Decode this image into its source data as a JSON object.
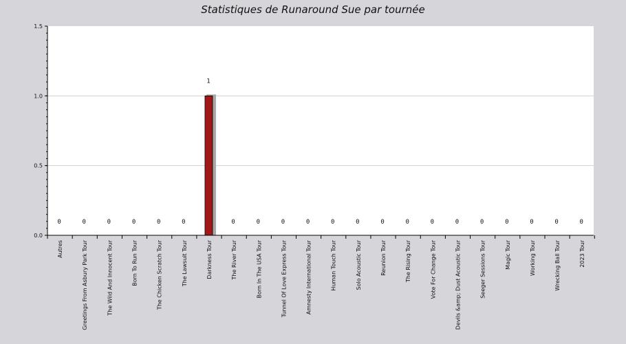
{
  "chart_data": {
    "type": "bar",
    "title": "Statistiques de Runaround Sue par tournée",
    "xlabel": "",
    "ylabel": "",
    "ylim": [
      0,
      1.5
    ],
    "yticks": [
      "0.0",
      "0.5",
      "1.0",
      "1.5"
    ],
    "ytick_values": [
      0,
      0.5,
      1.0,
      1.5
    ],
    "grid": true,
    "categories": [
      "Autres",
      "Greetings From Asbury Park Tour",
      "The Wild And Innocent Tour",
      "Born To Run Tour",
      "The Chicken Scratch Tour",
      "The Lawsuit Tour",
      "Darkness Tour",
      "The River Tour",
      "Born In The USA Tour",
      "Tunnel Of Love Express Tour",
      "Amnesty International Tour",
      "Human Touch Tour",
      "Solo Acoustic Tour",
      "Reunion Tour",
      "The Rising Tour",
      "Vote For Change Tour",
      "Devils &amp; Dust Acoustic Tour",
      "Seeger Sessions Tour",
      "Magic Tour",
      "Working Tour",
      "Wrecking Ball Tour",
      "2023 Tour"
    ],
    "values": [
      0,
      0,
      0,
      0,
      0,
      0,
      1,
      0,
      0,
      0,
      0,
      0,
      0,
      0,
      0,
      0,
      0,
      0,
      0,
      0,
      0,
      0
    ],
    "value_labels": [
      "0",
      "0",
      "0",
      "0",
      "0",
      "0",
      "1",
      "0",
      "0",
      "0",
      "0",
      "0",
      "0",
      "0",
      "0",
      "0",
      "0",
      "0",
      "0",
      "0",
      "0",
      "0"
    ],
    "colors": {
      "bar": "#a01818",
      "bar_shadow": "#a8a8a8",
      "background": "#d6d5d9",
      "plot": "#ffffff",
      "grid": "#d0d0d0"
    }
  }
}
